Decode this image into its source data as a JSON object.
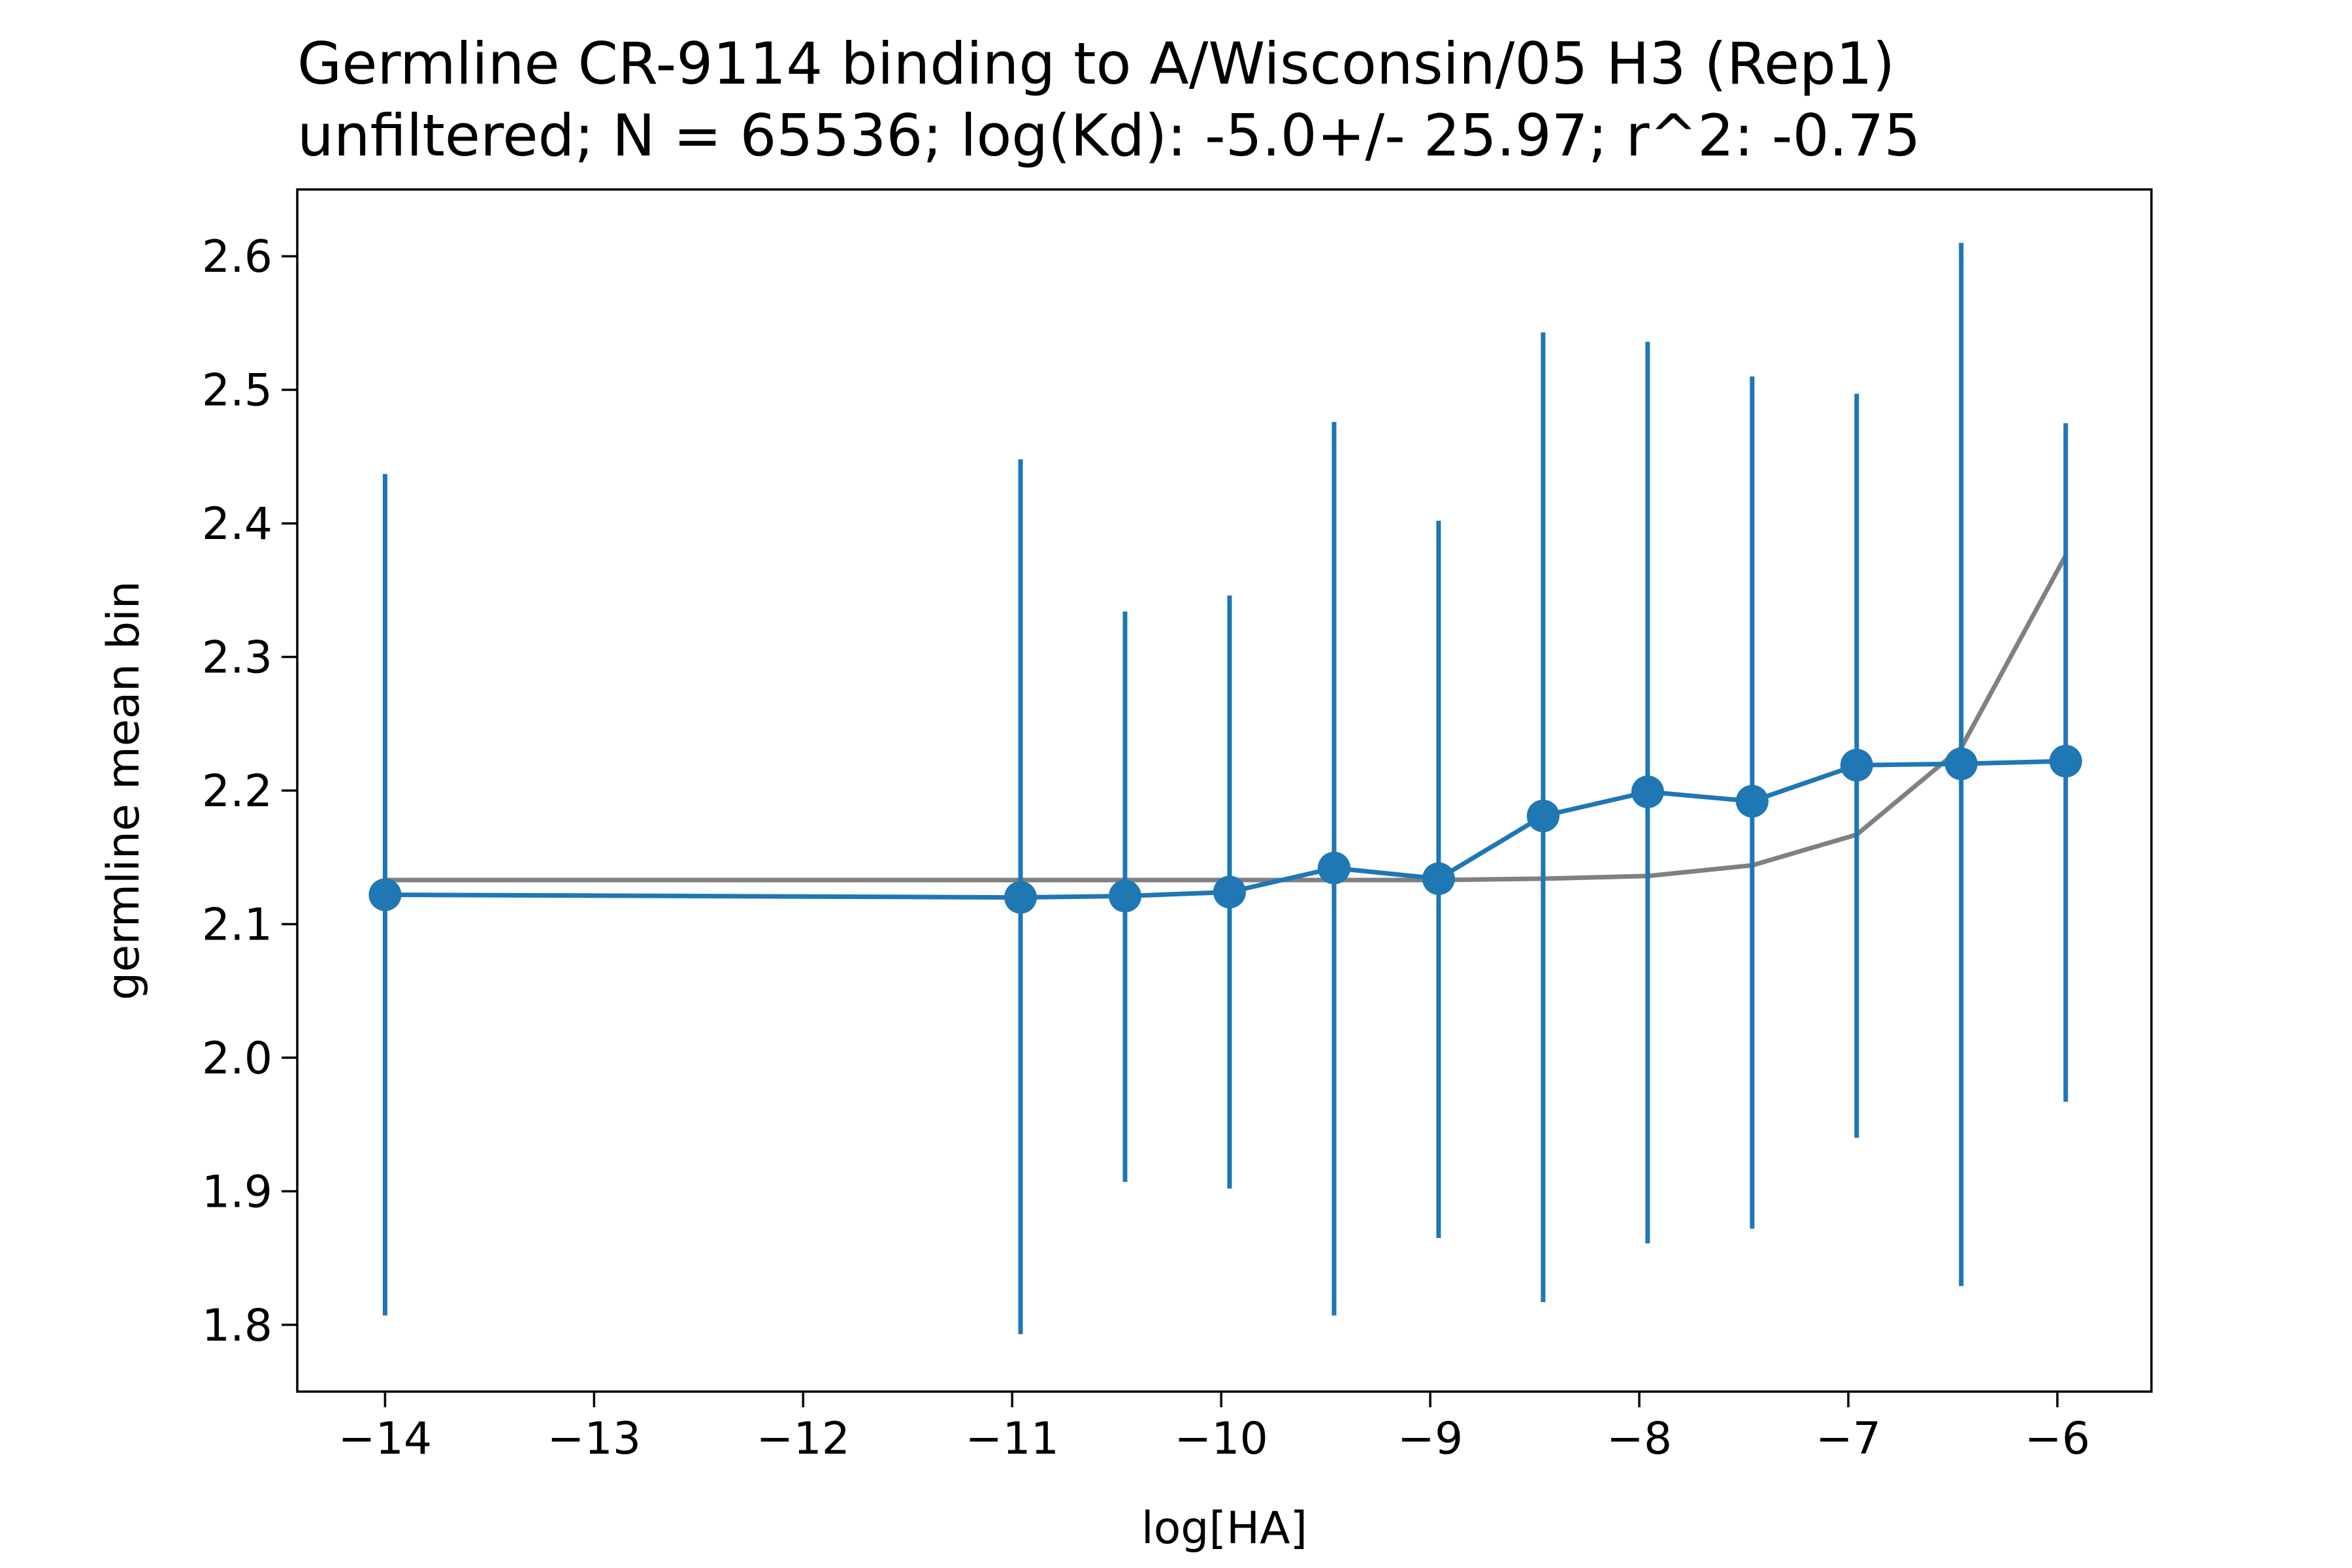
{
  "chart_data": {
    "type": "line",
    "title": "Germline CR-9114 binding to A/Wisconsin/05 H3 (Rep1)",
    "subtitle": "unfiltered; N = 65536; log(Kd): -5.0+/- 25.97; r^2: -0.75",
    "xlabel": "log[HA]",
    "ylabel": "germline mean bin",
    "xlim": [
      -14.42,
      -5.55
    ],
    "ylim": [
      1.75,
      2.65
    ],
    "xticks": [
      -14,
      -13,
      -12,
      -11,
      -10,
      -9,
      -8,
      -7,
      -6
    ],
    "xtick_labels": [
      "−14",
      "−13",
      "−12",
      "−11",
      "−10",
      "−9",
      "−8",
      "−7",
      "−6"
    ],
    "yticks": [
      1.8,
      1.9,
      2.0,
      2.1,
      2.2,
      2.3,
      2.4,
      2.5,
      2.6
    ],
    "ytick_labels": [
      "1.8",
      "1.9",
      "2.0",
      "2.1",
      "2.2",
      "2.3",
      "2.4",
      "2.5",
      "2.6"
    ],
    "grid": false,
    "series": [
      {
        "style": "errorbar",
        "color": "#1f77b4",
        "x": [
          -14.0,
          -10.96,
          -10.46,
          -9.96,
          -9.46,
          -8.96,
          -8.46,
          -7.96,
          -7.46,
          -6.96,
          -6.46,
          -5.96
        ],
        "y": [
          2.122,
          2.12,
          2.121,
          2.124,
          2.142,
          2.134,
          2.181,
          2.199,
          2.192,
          2.219,
          2.22,
          2.222
        ],
        "yerr_low": [
          1.807,
          1.793,
          1.907,
          1.902,
          1.807,
          1.865,
          1.817,
          1.861,
          1.872,
          1.94,
          1.829,
          1.967
        ],
        "yerr_high": [
          2.437,
          2.448,
          2.334,
          2.346,
          2.476,
          2.402,
          2.543,
          2.536,
          2.51,
          2.497,
          2.61,
          2.475
        ]
      },
      {
        "style": "fit-line",
        "color": "#808080",
        "x": [
          -14.0,
          -10.96,
          -10.46,
          -9.96,
          -9.46,
          -8.96,
          -8.46,
          -7.96,
          -7.46,
          -6.96,
          -6.46,
          -5.96
        ],
        "y": [
          2.133,
          2.133,
          2.133,
          2.133,
          2.133,
          2.133,
          2.134,
          2.136,
          2.144,
          2.167,
          2.232,
          2.376
        ]
      }
    ]
  }
}
